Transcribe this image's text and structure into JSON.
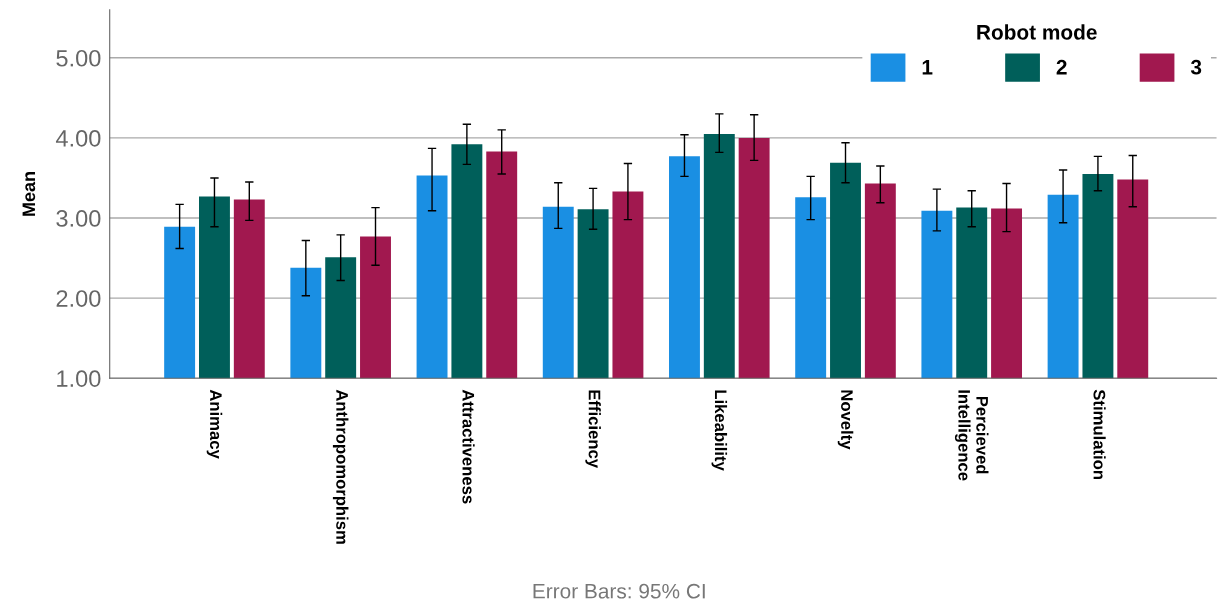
{
  "chart_data": {
    "type": "bar",
    "ylabel": "Mean",
    "legend_title": "Robot mode",
    "categories": [
      "Animacy",
      "Anthropomorphism",
      "Attractiveness",
      "Efficiency",
      "Likeability",
      "Novelty",
      "Percieved\nIntelligence",
      "Stimulation"
    ],
    "series": [
      {
        "name": "1",
        "color": "#1a8fe3",
        "values": [
          2.89,
          2.38,
          3.53,
          3.14,
          3.77,
          3.26,
          3.09,
          3.29
        ],
        "errors": [
          [
            2.62,
            3.17
          ],
          [
            2.03,
            2.72
          ],
          [
            3.09,
            3.87
          ],
          [
            2.87,
            3.44
          ],
          [
            3.52,
            4.04
          ],
          [
            2.98,
            3.52
          ],
          [
            2.84,
            3.36
          ],
          [
            2.94,
            3.6
          ]
        ]
      },
      {
        "name": "2",
        "color": "#005f5a",
        "values": [
          3.27,
          2.51,
          3.92,
          3.11,
          4.05,
          3.69,
          3.13,
          3.55
        ],
        "errors": [
          [
            2.89,
            3.5
          ],
          [
            2.22,
            2.79
          ],
          [
            3.67,
            4.17
          ],
          [
            2.86,
            3.37
          ],
          [
            3.82,
            4.3
          ],
          [
            3.44,
            3.94
          ],
          [
            2.89,
            3.34
          ],
          [
            3.34,
            3.77
          ]
        ]
      },
      {
        "name": "3",
        "color": "#a1184f",
        "values": [
          3.23,
          2.77,
          3.83,
          3.33,
          4.0,
          3.43,
          3.12,
          3.48
        ],
        "errors": [
          [
            2.97,
            3.45
          ],
          [
            2.41,
            3.13
          ],
          [
            3.55,
            4.1
          ],
          [
            2.98,
            3.68
          ],
          [
            3.72,
            4.29
          ],
          [
            3.19,
            3.65
          ],
          [
            2.83,
            3.43
          ],
          [
            3.14,
            3.78
          ]
        ]
      }
    ],
    "ylim": [
      1,
      5.6
    ],
    "yticks": [
      {
        "value": 1,
        "label": "1.00"
      },
      {
        "value": 2,
        "label": "2.00"
      },
      {
        "value": 3,
        "label": "3.00"
      },
      {
        "value": 4,
        "label": "4.00"
      },
      {
        "value": 5,
        "label": "5.00"
      }
    ],
    "grid": "y",
    "legend": "top right",
    "annotations": [
      "Error Bars: 95% CI"
    ]
  }
}
